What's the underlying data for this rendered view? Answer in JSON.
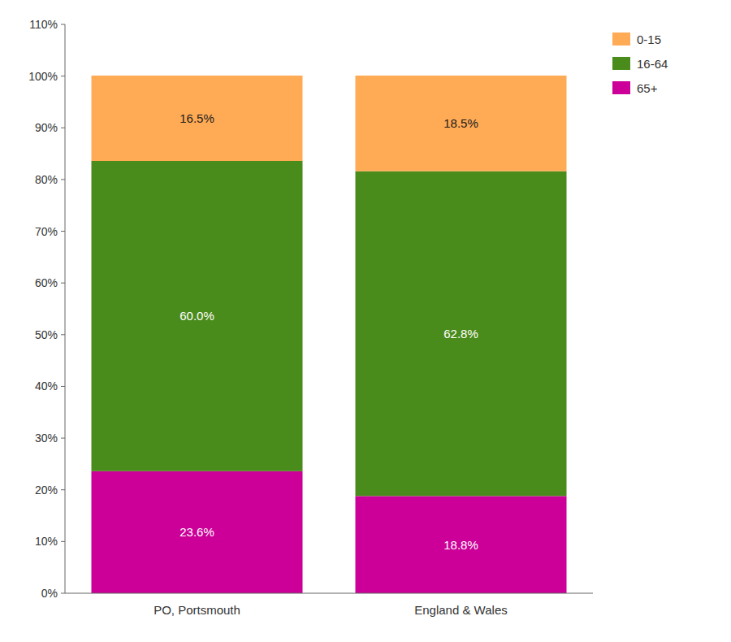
{
  "chart_data": {
    "type": "bar",
    "stacked": true,
    "categories": [
      "PO, Portsmouth",
      "England & Wales"
    ],
    "series": [
      {
        "name": "65+",
        "color": "#CC0099",
        "values": [
          23.6,
          18.8
        ],
        "value_labels": [
          "23.6%",
          "18.8%"
        ]
      },
      {
        "name": "16-64",
        "color": "#4A8C1C",
        "values": [
          60.0,
          62.8
        ],
        "value_labels": [
          "60.0%",
          "62.8%"
        ]
      },
      {
        "name": "0-15",
        "color": "#FFAA55",
        "values": [
          16.5,
          18.5
        ],
        "value_labels": [
          "16.5%",
          "18.5%"
        ]
      }
    ],
    "ylim": [
      0,
      110
    ],
    "yticks": [
      {
        "value": 0,
        "label": "0%"
      },
      {
        "value": 10,
        "label": "10%"
      },
      {
        "value": 20,
        "label": "20%"
      },
      {
        "value": 30,
        "label": "30%"
      },
      {
        "value": 40,
        "label": "40%"
      },
      {
        "value": 50,
        "label": "50%"
      },
      {
        "value": 60,
        "label": "60%"
      },
      {
        "value": 70,
        "label": "70%"
      },
      {
        "value": 80,
        "label": "80%"
      },
      {
        "value": 90,
        "label": "90%"
      },
      {
        "value": 100,
        "label": "100%"
      },
      {
        "value": 110,
        "label": "110%"
      }
    ],
    "data_labels": true,
    "grid": false,
    "legend": "right"
  }
}
